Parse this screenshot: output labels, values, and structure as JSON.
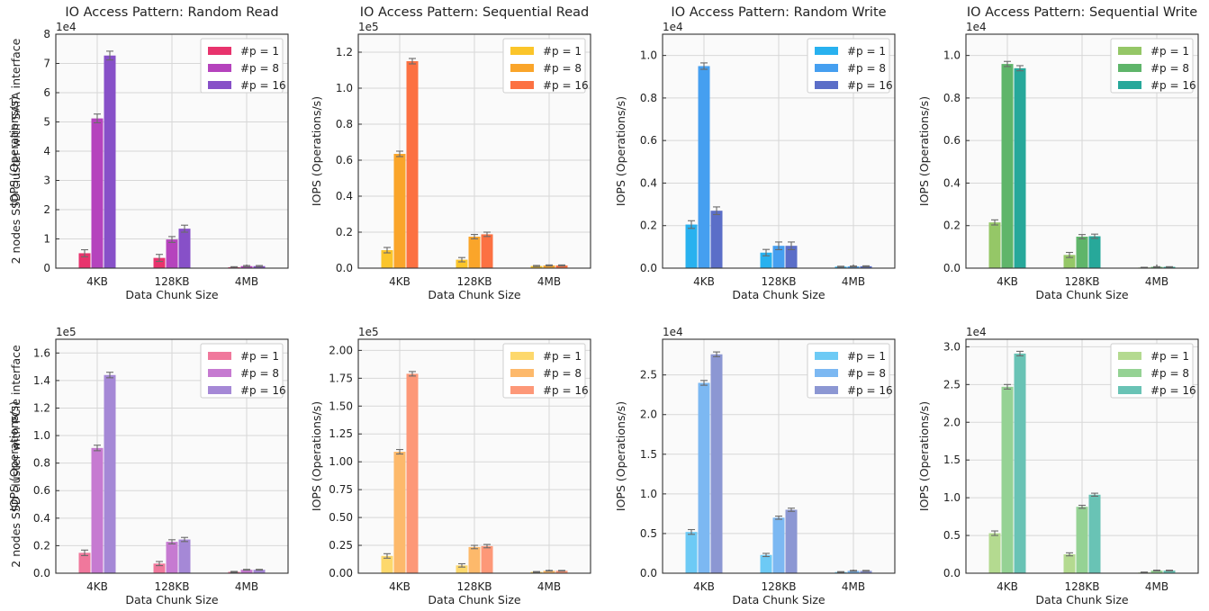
{
  "row_labels": [
    "2 nodes SSD cluster with SATA interface",
    "2 nodes SSD cluster with PCIe interface"
  ],
  "chart_data": [
    {
      "type": "bar",
      "title": "IO Access Pattern: Random Read",
      "xlabel": "Data Chunk Size",
      "ylabel": "IOPS (Operations/s)",
      "categories": [
        "4KB",
        "128KB",
        "4MB"
      ],
      "ylim": [
        0,
        8
      ],
      "yticks": [
        "0",
        "1",
        "2",
        "3",
        "4",
        "5",
        "6",
        "7",
        "8"
      ],
      "multiplier": "1e4",
      "series": [
        {
          "name": "#p = 1",
          "color": "#e8336d",
          "values": [
            0.51,
            0.35,
            0.03
          ],
          "errors": [
            0.12,
            0.12,
            0.02
          ]
        },
        {
          "name": "#p = 8",
          "color": "#b543bd",
          "values": [
            5.12,
            0.98,
            0.07
          ],
          "errors": [
            0.15,
            0.1,
            0.02
          ]
        },
        {
          "name": "#p = 16",
          "color": "#8750c8",
          "values": [
            7.27,
            1.35,
            0.07
          ],
          "errors": [
            0.15,
            0.12,
            0.02
          ]
        }
      ],
      "legend": "upper right",
      "grid": true
    },
    {
      "type": "bar",
      "title": "IO Access Pattern: Sequential Read",
      "xlabel": "Data Chunk Size",
      "ylabel": "IOPS (Operations/s)",
      "categories": [
        "4KB",
        "128KB",
        "4MB"
      ],
      "ylim": [
        0,
        1.3
      ],
      "yticks": [
        "0.0",
        "0.2",
        "0.4",
        "0.6",
        "0.8",
        "1.0",
        "1.2"
      ],
      "multiplier": "1e5",
      "series": [
        {
          "name": "#p = 1",
          "color": "#fbc52a",
          "values": [
            0.1,
            0.047,
            0.012
          ],
          "errors": [
            0.015,
            0.012,
            0.003
          ]
        },
        {
          "name": "#p = 8",
          "color": "#faa52a",
          "values": [
            0.635,
            0.175,
            0.015
          ],
          "errors": [
            0.015,
            0.012,
            0.003
          ]
        },
        {
          "name": "#p = 16",
          "color": "#fc7142",
          "values": [
            1.15,
            0.188,
            0.015
          ],
          "errors": [
            0.015,
            0.012,
            0.003
          ]
        }
      ],
      "legend": "upper right",
      "grid": true
    },
    {
      "type": "bar",
      "title": "IO Access Pattern: Random Write",
      "xlabel": "Data Chunk Size",
      "ylabel": "IOPS (Operations/s)",
      "categories": [
        "4KB",
        "128KB",
        "4MB"
      ],
      "ylim": [
        0,
        1.1
      ],
      "yticks": [
        "0.0",
        "0.2",
        "0.4",
        "0.6",
        "0.8",
        "1.0"
      ],
      "multiplier": "1e4",
      "series": [
        {
          "name": "#p = 1",
          "color": "#28b1ef",
          "values": [
            0.205,
            0.073,
            0.007
          ],
          "errors": [
            0.018,
            0.015,
            0.002
          ]
        },
        {
          "name": "#p = 8",
          "color": "#459ff0",
          "values": [
            0.95,
            0.105,
            0.008
          ],
          "errors": [
            0.015,
            0.018,
            0.002
          ]
        },
        {
          "name": "#p = 16",
          "color": "#5b6ec8",
          "values": [
            0.27,
            0.105,
            0.009
          ],
          "errors": [
            0.018,
            0.018,
            0.002
          ]
        }
      ],
      "legend": "upper right",
      "grid": true
    },
    {
      "type": "bar",
      "title": "IO Access Pattern: Sequential Write",
      "xlabel": "Data Chunk Size",
      "ylabel": "IOPS (Operations/s)",
      "categories": [
        "4KB",
        "128KB",
        "4MB"
      ],
      "ylim": [
        0,
        1.1
      ],
      "yticks": [
        "0.0",
        "0.2",
        "0.4",
        "0.6",
        "0.8",
        "1.0"
      ],
      "multiplier": "1e4",
      "series": [
        {
          "name": "#p = 1",
          "color": "#95c767",
          "values": [
            0.215,
            0.062,
            0.003
          ],
          "errors": [
            0.012,
            0.012,
            0.001
          ]
        },
        {
          "name": "#p = 8",
          "color": "#5fb56a",
          "values": [
            0.96,
            0.148,
            0.006
          ],
          "errors": [
            0.012,
            0.01,
            0.001
          ]
        },
        {
          "name": "#p = 16",
          "color": "#27a89a",
          "values": [
            0.94,
            0.15,
            0.006
          ],
          "errors": [
            0.012,
            0.01,
            0.001
          ]
        }
      ],
      "legend": "upper right",
      "grid": true
    },
    {
      "type": "bar",
      "title": "",
      "xlabel": "Data Chunk Size",
      "ylabel": "IOPS (Operations/s)",
      "categories": [
        "4KB",
        "128KB",
        "4MB"
      ],
      "ylim": [
        0,
        1.7
      ],
      "yticks": [
        "0.0",
        "0.2",
        "0.4",
        "0.6",
        "0.8",
        "1.0",
        "1.2",
        "1.4",
        "1.6"
      ],
      "multiplier": "1e5",
      "series": [
        {
          "name": "#p = 1",
          "color": "#f0789c",
          "values": [
            0.148,
            0.07,
            0.01
          ],
          "errors": [
            0.02,
            0.015,
            0.003
          ]
        },
        {
          "name": "#p = 8",
          "color": "#c67ad1",
          "values": [
            0.91,
            0.228,
            0.025
          ],
          "errors": [
            0.02,
            0.015,
            0.003
          ]
        },
        {
          "name": "#p = 16",
          "color": "#a588d6",
          "values": [
            1.44,
            0.245,
            0.025
          ],
          "errors": [
            0.02,
            0.015,
            0.003
          ]
        }
      ],
      "legend": "upper right",
      "grid": true
    },
    {
      "type": "bar",
      "title": "",
      "xlabel": "Data Chunk Size",
      "ylabel": "IOPS (Operations/s)",
      "categories": [
        "4KB",
        "128KB",
        "4MB"
      ],
      "ylim": [
        0,
        2.1
      ],
      "yticks": [
        "0.00",
        "0.25",
        "0.50",
        "0.75",
        "1.00",
        "1.25",
        "1.50",
        "1.75",
        "2.00"
      ],
      "multiplier": "1e5",
      "series": [
        {
          "name": "#p = 1",
          "color": "#fdd86c",
          "values": [
            0.155,
            0.07,
            0.012
          ],
          "errors": [
            0.02,
            0.015,
            0.003
          ]
        },
        {
          "name": "#p = 8",
          "color": "#fdb96b",
          "values": [
            1.09,
            0.235,
            0.022
          ],
          "errors": [
            0.02,
            0.015,
            0.003
          ]
        },
        {
          "name": "#p = 16",
          "color": "#fd9878",
          "values": [
            1.79,
            0.243,
            0.022
          ],
          "errors": [
            0.02,
            0.015,
            0.003
          ]
        }
      ],
      "legend": "upper right",
      "grid": true
    },
    {
      "type": "bar",
      "title": "",
      "xlabel": "Data Chunk Size",
      "ylabel": "IOPS (Operations/s)",
      "categories": [
        "4KB",
        "128KB",
        "4MB"
      ],
      "ylim": [
        0,
        2.95
      ],
      "yticks": [
        "0.0",
        "0.5",
        "1.0",
        "1.5",
        "2.0",
        "2.5"
      ],
      "multiplier": "1e4",
      "series": [
        {
          "name": "#p = 1",
          "color": "#6dcaf5",
          "values": [
            0.52,
            0.23,
            0.015
          ],
          "errors": [
            0.03,
            0.02,
            0.005
          ]
        },
        {
          "name": "#p = 8",
          "color": "#7cb8f2",
          "values": [
            2.4,
            0.7,
            0.03
          ],
          "errors": [
            0.03,
            0.02,
            0.005
          ]
        },
        {
          "name": "#p = 16",
          "color": "#8c97d3",
          "values": [
            2.76,
            0.8,
            0.03
          ],
          "errors": [
            0.03,
            0.02,
            0.005
          ]
        }
      ],
      "legend": "upper right",
      "grid": true
    },
    {
      "type": "bar",
      "title": "",
      "xlabel": "Data Chunk Size",
      "ylabel": "IOPS (Operations/s)",
      "categories": [
        "4KB",
        "128KB",
        "4MB"
      ],
      "ylim": [
        0,
        3.1
      ],
      "yticks": [
        "0.0",
        "0.5",
        "1.0",
        "1.5",
        "2.0",
        "2.5",
        "3.0"
      ],
      "multiplier": "1e4",
      "series": [
        {
          "name": "#p = 1",
          "color": "#b4da90",
          "values": [
            0.53,
            0.25,
            0.01
          ],
          "errors": [
            0.03,
            0.02,
            0.005
          ]
        },
        {
          "name": "#p = 8",
          "color": "#95d294",
          "values": [
            2.47,
            0.88,
            0.035
          ],
          "errors": [
            0.03,
            0.02,
            0.005
          ]
        },
        {
          "name": "#p = 16",
          "color": "#69c3b5",
          "values": [
            2.91,
            1.04,
            0.035
          ],
          "errors": [
            0.03,
            0.02,
            0.005
          ]
        }
      ],
      "legend": "upper right",
      "grid": true
    }
  ]
}
